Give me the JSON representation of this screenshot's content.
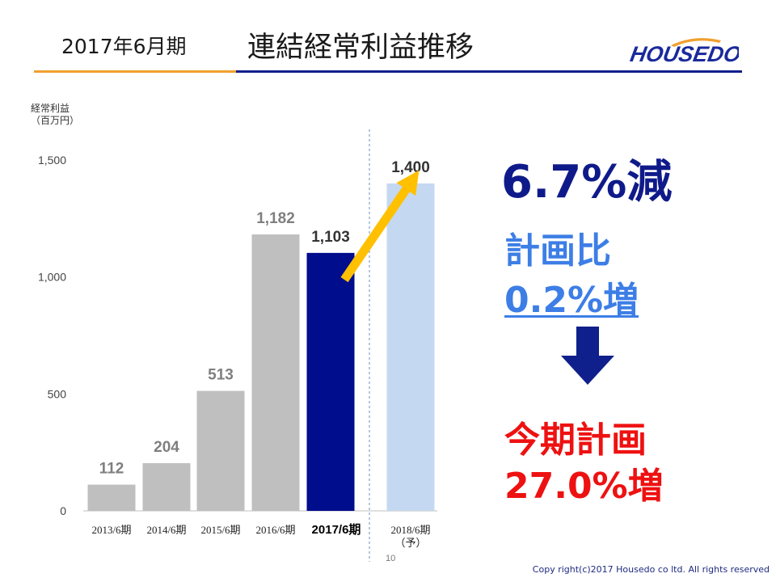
{
  "header": {
    "period": "2017年6月期",
    "title": "連結経常利益推移",
    "logo_text": "HOUSEDO",
    "accent_colors": {
      "orange": "#f0a030",
      "navy": "#0f1f8c"
    }
  },
  "chart_data": {
    "type": "bar",
    "ylabel_line1": "経常利益",
    "ylabel_line2": "（百万円）",
    "ylim": [
      0,
      1500
    ],
    "yticks": [
      0,
      500,
      1000,
      1500
    ],
    "ytick_labels": [
      "0",
      "500",
      "1,000",
      "1,500"
    ],
    "grid": false,
    "categories": [
      "2013/6期",
      "2014/6期",
      "2015/6期",
      "2016/6期",
      "2017/6期",
      "2018/6期"
    ],
    "forecast_suffix": "（予）",
    "values": [
      112,
      204,
      513,
      1182,
      1103,
      1400
    ],
    "value_labels": [
      "112",
      "204",
      "513",
      "1,182",
      "1,103",
      "1,400"
    ],
    "bar_colors": [
      "#bfbfbf",
      "#bfbfbf",
      "#bfbfbf",
      "#bfbfbf",
      "#000d8c",
      "#c5d8f1"
    ],
    "value_label_colors": [
      "#7f7f7f",
      "#7f7f7f",
      "#7f7f7f",
      "#7f7f7f",
      "#333333",
      "#333333"
    ],
    "highlight_index": 4,
    "forecast_index": 5
  },
  "callouts": {
    "decrease": "6.7%減",
    "plan_label": "計画比",
    "plan_value": "0.2%増",
    "current_plan_label": "今期計画",
    "current_plan_value": "27.0%増",
    "colors": {
      "decrease": "#0f1a8a",
      "plan": "#3d7ee6",
      "current": "#ee1111",
      "arrow": "#ffc000"
    }
  },
  "footer": {
    "page_number": "10",
    "copyright": "Copy right(c)2017 Housedo co ltd. All rights reserved"
  }
}
